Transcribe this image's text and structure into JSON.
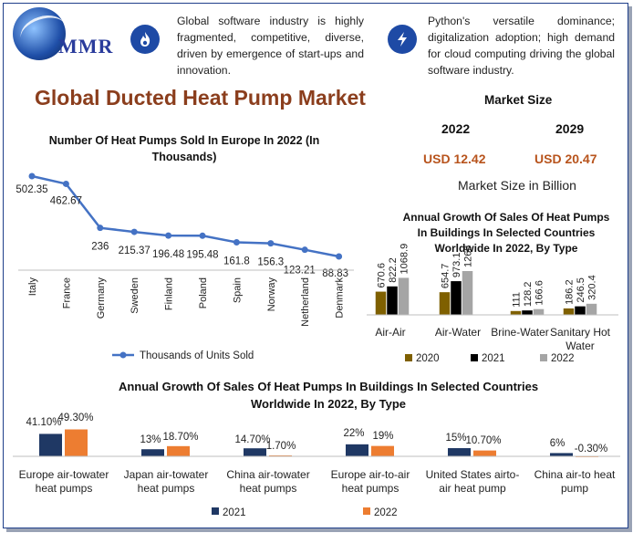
{
  "brand": {
    "logo_text": "MMR"
  },
  "header": {
    "blurb_left": "Global software industry is highly fragmented, competitive, diverse, driven by emergence of start-ups and innovation.",
    "blurb_right": "Python's versatile dominance; digitalization adoption; high demand for cloud computing driving the global software industry.",
    "icon_left": "fire-icon",
    "icon_right": "lightning-icon"
  },
  "main_title": "Global Ducted Heat Pump Market",
  "market_size": {
    "title": "Market Size",
    "year_a": "2022",
    "year_b": "2029",
    "value_a": "USD 12.42",
    "value_b": "USD 20.47",
    "note": "Market Size in Billion"
  },
  "colors": {
    "line": "#4472c4",
    "gold": "#7f6000",
    "black": "#000000",
    "grey": "#a5a5a5",
    "navy": "#1f3864",
    "orange": "#ed7d31",
    "title_brown": "#8b3e1d"
  },
  "chart_data": [
    {
      "type": "line",
      "title": "Number Of Heat Pumps Sold In Europe In 2022 (In Thousands)",
      "categories": [
        "Italy",
        "France",
        "Germany",
        "Sweden",
        "Finland",
        "Poland",
        "Spain",
        "Norway",
        "Netherland",
        "Denmark"
      ],
      "series": [
        {
          "name": "Thousands of Units  Sold",
          "values": [
            502.35,
            462.67,
            236,
            215.37,
            196.48,
            195.48,
            161.8,
            156.3,
            123.21,
            88.83
          ],
          "labels": [
            "502.35",
            "462.67",
            "236",
            "215.37",
            "196.48",
            "195.48",
            "161.8",
            "156.3",
            "123.21",
            "88.83"
          ]
        }
      ],
      "legend": "bottom",
      "grid": false
    },
    {
      "type": "bar",
      "title": "Annual Growth Of Sales Of Heat Pumps In Buildings In Selected Countries Worldwide In 2022, By Type",
      "categories": [
        "Air-Air",
        "Air-Water",
        "Brine-Water",
        "Sanitary Hot Water"
      ],
      "series": [
        {
          "name": "2020",
          "values": [
            670.6,
            654.7,
            111,
            186.2
          ],
          "labels": [
            "670.6",
            "654.7",
            "111",
            "186.2"
          ]
        },
        {
          "name": "2021",
          "values": [
            822.2,
            973.1,
            128.2,
            246.5
          ],
          "labels": [
            "822.2",
            "973.1",
            "128.2",
            "246.5"
          ]
        },
        {
          "name": "2022",
          "values": [
            1068.9,
            1265,
            166.6,
            320.4
          ],
          "labels": [
            "1068.9",
            "1265",
            "166.6",
            "320.4"
          ]
        }
      ],
      "legend": "bottom",
      "grid": false
    },
    {
      "type": "bar",
      "title": "Annual Growth Of Sales Of Heat Pumps In Buildings In Selected Countries Worldwide In 2022, By Type",
      "categories": [
        "Europe air-towater heat pumps",
        "Japan air-towater heat pumps",
        "China air-towater heat pumps",
        "Europe air-to-air heat pumps",
        "United States airto-air heat pump",
        "China air-to heat pump"
      ],
      "series": [
        {
          "name": "2021",
          "values": [
            41.1,
            13,
            14.7,
            22,
            15,
            6
          ],
          "labels": [
            "41.10%",
            "13%",
            "14.70%",
            "22%",
            "15%",
            "6%"
          ]
        },
        {
          "name": "2022",
          "values": [
            49.3,
            18.7,
            1.7,
            19,
            10.7,
            -0.3
          ],
          "labels": [
            "49.30%",
            "18.70%",
            "1.70%",
            "19%",
            "10.70%",
            "-0.30%"
          ]
        }
      ],
      "legend": "bottom",
      "grid": false
    }
  ]
}
